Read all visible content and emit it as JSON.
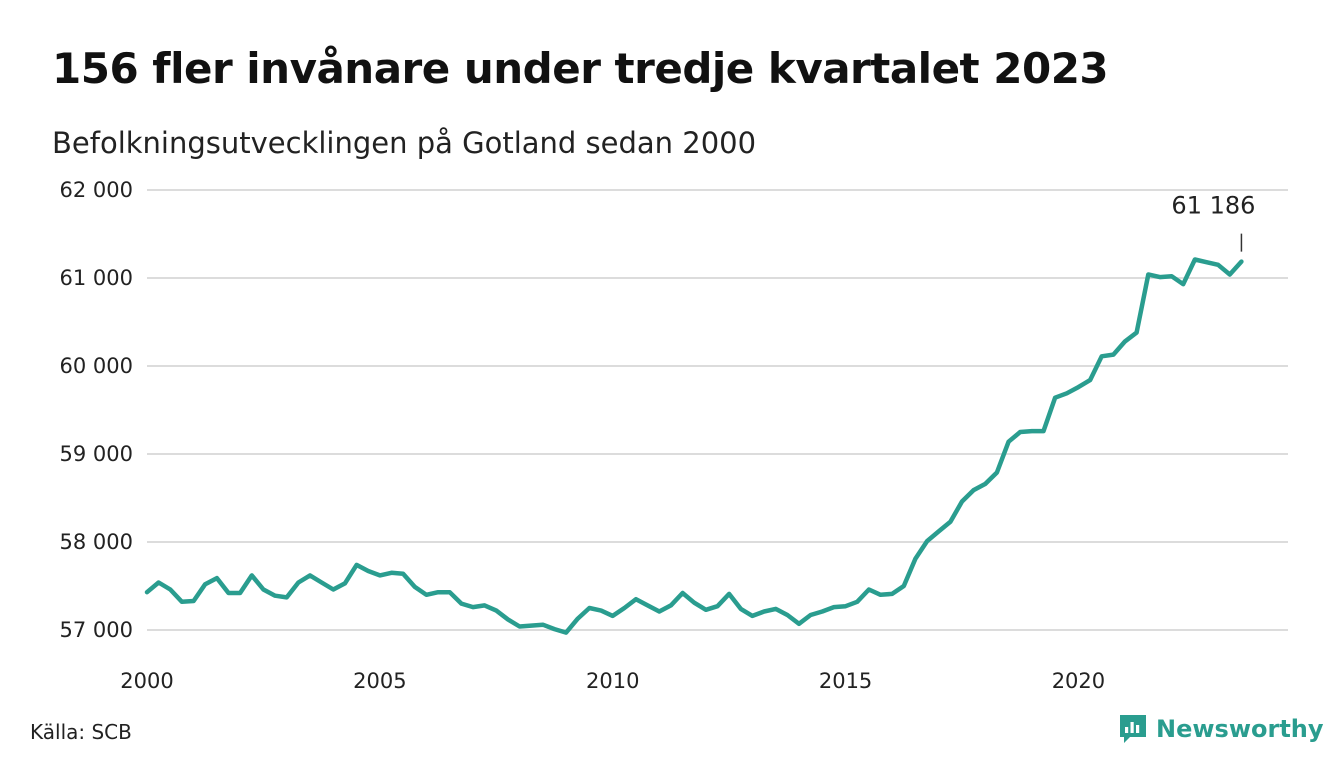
{
  "title": "156 fler invånare under tredje kvartalet 2023",
  "subtitle": "Befolkningsutvecklingen på Gotland sedan 2000",
  "source": "Källa: SCB",
  "brand": {
    "name": "Newsworthy",
    "icon": "newsworthy-logo-icon",
    "color": "#2a9d8f"
  },
  "chart_data": {
    "type": "line",
    "title": "156 fler invånare under tredje kvartalet 2023",
    "subtitle": "Befolkningsutvecklingen på Gotland sedan 2000",
    "xlabel": "",
    "ylabel": "",
    "ylim": [
      57000,
      62000
    ],
    "xlim": [
      2000,
      2024.5
    ],
    "grid": true,
    "line_color": "#2a9d8f",
    "y_ticks": [
      {
        "value": 57000,
        "label": "57 000"
      },
      {
        "value": 58000,
        "label": "58 000"
      },
      {
        "value": 59000,
        "label": "59 000"
      },
      {
        "value": 60000,
        "label": "60 000"
      },
      {
        "value": 61000,
        "label": "61 000"
      },
      {
        "value": 62000,
        "label": "62 000"
      }
    ],
    "x_ticks": [
      {
        "value": 2000,
        "label": "2000"
      },
      {
        "value": 2005,
        "label": "2005"
      },
      {
        "value": 2010,
        "label": "2010"
      },
      {
        "value": 2015,
        "label": "2015"
      },
      {
        "value": 2020,
        "label": "2020"
      }
    ],
    "end_label": "61 186",
    "series": [
      {
        "x": [
          2000.0,
          2000.25,
          2000.5,
          2000.75,
          2001.0,
          2001.25,
          2001.5,
          2001.75,
          2002.0,
          2002.25,
          2002.5,
          2002.75,
          2003.0,
          2003.25,
          2003.5,
          2003.75,
          2004.0,
          2004.25,
          2004.5,
          2004.75,
          2005.0,
          2005.25,
          2005.5,
          2005.75,
          2006.0,
          2006.25,
          2006.5,
          2006.75,
          2007.0,
          2007.25,
          2007.5,
          2007.75,
          2008.0,
          2008.25,
          2008.5,
          2008.75,
          2009.0,
          2009.25,
          2009.5,
          2009.75,
          2010.0,
          2010.25,
          2010.5,
          2010.75,
          2011.0,
          2011.25,
          2011.5,
          2011.75,
          2012.0,
          2012.25,
          2012.5,
          2012.75,
          2013.0,
          2013.25,
          2013.5,
          2013.75,
          2014.0,
          2014.25,
          2014.5,
          2014.75,
          2015.0,
          2015.25,
          2015.5,
          2015.75,
          2016.0,
          2016.25,
          2016.5,
          2016.75,
          2017.0,
          2017.25,
          2017.5,
          2017.75,
          2018.0,
          2018.25,
          2018.5,
          2018.75,
          2019.0,
          2019.25,
          2019.5,
          2019.75,
          2020.0,
          2020.25,
          2020.5,
          2020.75,
          2021.0,
          2021.25,
          2021.5,
          2021.75,
          2022.0,
          2022.25,
          2022.5,
          2022.75,
          2023.0,
          2023.25,
          2023.5
        ],
        "values": [
          57430,
          57540,
          57460,
          57320,
          57330,
          57520,
          57590,
          57420,
          57420,
          57620,
          57460,
          57390,
          57370,
          57540,
          57620,
          57540,
          57460,
          57530,
          57740,
          57670,
          57620,
          57650,
          57640,
          57490,
          57400,
          57430,
          57430,
          57300,
          57260,
          57280,
          57220,
          57120,
          57040,
          57050,
          57060,
          57010,
          56970,
          57130,
          57250,
          57220,
          57160,
          57250,
          57350,
          57280,
          57210,
          57280,
          57420,
          57310,
          57230,
          57270,
          57410,
          57240,
          57160,
          57210,
          57240,
          57170,
          57070,
          57170,
          57210,
          57260,
          57270,
          57320,
          57460,
          57400,
          57410,
          57500,
          57810,
          58010,
          58120,
          58230,
          58460,
          58590,
          58660,
          58790,
          59140,
          59250,
          59260,
          59260,
          59640,
          59690,
          59760,
          59840,
          60110,
          60130,
          60280,
          60380,
          61040,
          61010,
          61020,
          60930,
          61210,
          61180,
          61150,
          61040,
          61186
        ]
      }
    ]
  }
}
